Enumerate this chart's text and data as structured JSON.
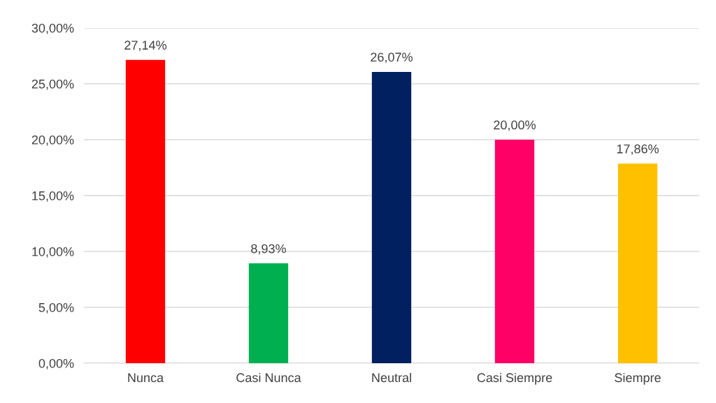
{
  "chart_data": {
    "type": "bar",
    "categories": [
      "Nunca",
      "Casi Nunca",
      "Neutral",
      "Casi Siempre",
      "Siempre"
    ],
    "values": [
      27.14,
      8.93,
      26.07,
      20.0,
      17.86
    ],
    "colors": [
      "#ff0000",
      "#00b050",
      "#002060",
      "#ff0066",
      "#ffc000"
    ],
    "value_labels": [
      "27,14%",
      "8,93%",
      "26,07%",
      "20,00%",
      "17,86%"
    ],
    "ylim": [
      0,
      30
    ],
    "yticks": [
      {
        "value": 0,
        "label": "0,00%"
      },
      {
        "value": 5,
        "label": "5,00%"
      },
      {
        "value": 10,
        "label": "10,00%"
      },
      {
        "value": 15,
        "label": "15,00%"
      },
      {
        "value": 20,
        "label": "20,00%"
      },
      {
        "value": 25,
        "label": "25,00%"
      },
      {
        "value": 30,
        "label": "30,00%"
      }
    ],
    "grid": "y",
    "legend": false
  }
}
